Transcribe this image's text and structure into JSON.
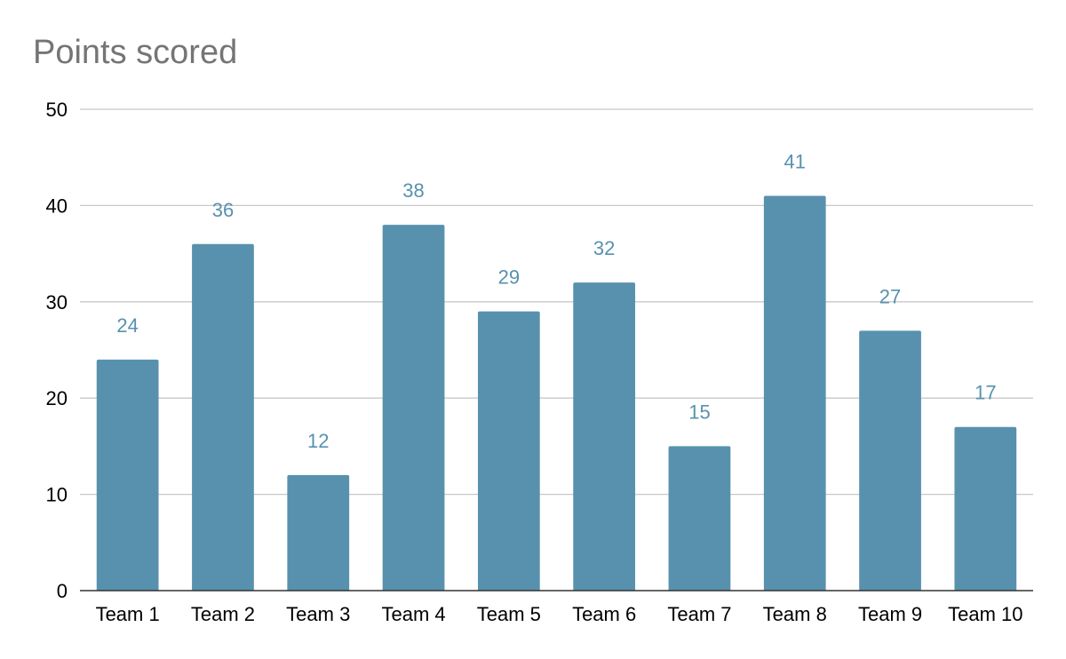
{
  "chart_data": {
    "type": "bar",
    "title": "Points scored",
    "xlabel": "",
    "ylabel": "",
    "categories": [
      "Team 1",
      "Team 2",
      "Team 3",
      "Team 4",
      "Team 5",
      "Team 6",
      "Team 7",
      "Team 8",
      "Team 9",
      "Team 10"
    ],
    "values": [
      24,
      36,
      12,
      38,
      29,
      32,
      15,
      41,
      27,
      17
    ],
    "data_labels": [
      "24",
      "36",
      "12",
      "38",
      "29",
      "32",
      "15",
      "41",
      "27",
      "17"
    ],
    "ylim": [
      0,
      50
    ],
    "yticks": [
      "0",
      "10",
      "20",
      "30",
      "40",
      "50"
    ],
    "grid": true,
    "legend": "none",
    "colors": {
      "bar": "#5891ae",
      "data_label": "#5891ae",
      "title": "#757575",
      "grid": "#c8c8c8",
      "axis": "#333333"
    }
  }
}
